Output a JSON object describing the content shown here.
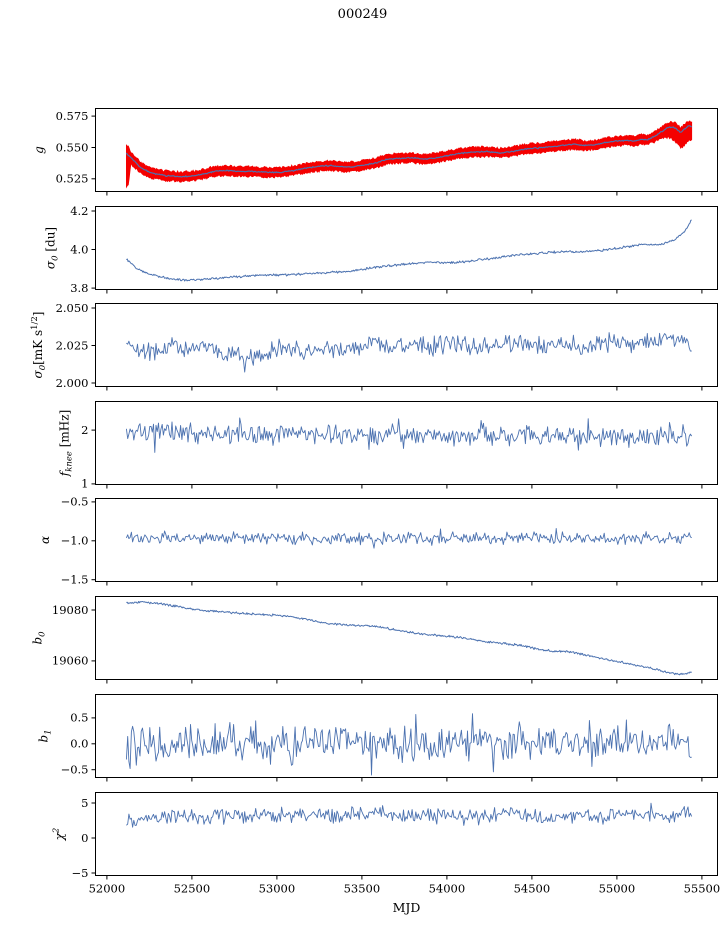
{
  "title": "000249",
  "xlabel": "MJD",
  "colors": {
    "series_blue": "#4c72b0",
    "series_red": "#f40000",
    "spine": "#000000",
    "text": "#000000",
    "background": "#ffffff"
  },
  "x_axis": {
    "label": "MJD",
    "view": [
      51930,
      55595
    ],
    "ticks": [
      52000,
      52500,
      53000,
      53500,
      54000,
      54500,
      55000,
      55500
    ],
    "tick_labels": [
      "52000",
      "52500",
      "53000",
      "53500",
      "54000",
      "54500",
      "55000",
      "55500"
    ],
    "data_start": 52115,
    "data_end": 55440
  },
  "chart_data": [
    {
      "type": "line",
      "name": "g",
      "ylabel": "g",
      "ylim": [
        0.5145,
        0.5815
      ],
      "yticks": [
        0.525,
        0.55,
        0.575
      ],
      "ytick_labels": [
        "0.525",
        "0.550",
        "0.575"
      ],
      "trend": [
        [
          52115,
          0.5455
        ],
        [
          52150,
          0.5405
        ],
        [
          52200,
          0.5338
        ],
        [
          52260,
          0.5297
        ],
        [
          52340,
          0.5276
        ],
        [
          52430,
          0.5266
        ],
        [
          52500,
          0.5271
        ],
        [
          52560,
          0.5286
        ],
        [
          52620,
          0.5306
        ],
        [
          52700,
          0.5316
        ],
        [
          52780,
          0.5309
        ],
        [
          52870,
          0.5308
        ],
        [
          52950,
          0.5301
        ],
        [
          53030,
          0.5303
        ],
        [
          53110,
          0.5319
        ],
        [
          53190,
          0.5339
        ],
        [
          53260,
          0.5352
        ],
        [
          53320,
          0.5356
        ],
        [
          53390,
          0.5346
        ],
        [
          53450,
          0.5346
        ],
        [
          53510,
          0.5359
        ],
        [
          53570,
          0.5373
        ],
        [
          53650,
          0.5407
        ],
        [
          53730,
          0.5414
        ],
        [
          53800,
          0.5417
        ],
        [
          53860,
          0.5408
        ],
        [
          53920,
          0.5414
        ],
        [
          54000,
          0.5434
        ],
        [
          54080,
          0.5454
        ],
        [
          54160,
          0.5464
        ],
        [
          54240,
          0.5467
        ],
        [
          54310,
          0.5457
        ],
        [
          54380,
          0.5466
        ],
        [
          54450,
          0.5486
        ],
        [
          54530,
          0.5496
        ],
        [
          54610,
          0.5506
        ],
        [
          54690,
          0.5518
        ],
        [
          54750,
          0.5526
        ],
        [
          54810,
          0.5516
        ],
        [
          54870,
          0.5519
        ],
        [
          54930,
          0.5539
        ],
        [
          55000,
          0.5551
        ],
        [
          55060,
          0.5558
        ],
        [
          55100,
          0.5549
        ],
        [
          55140,
          0.5564
        ],
        [
          55180,
          0.5561
        ],
        [
          55230,
          0.5593
        ],
        [
          55270,
          0.5634
        ],
        [
          55310,
          0.5663
        ],
        [
          55345,
          0.5656
        ],
        [
          55375,
          0.5618
        ],
        [
          55405,
          0.5656
        ],
        [
          55425,
          0.5673
        ],
        [
          55440,
          0.5664
        ]
      ],
      "series": [
        {
          "name": "gain-data-band",
          "type": "band",
          "color": "#f40000",
          "noise": 0.0018,
          "n": 620,
          "seed": 3,
          "band": [
            [
              52115,
              0.005,
              0.027
            ],
            [
              52128,
              0.006,
              0.022
            ],
            [
              52140,
              0.0035,
              0.004
            ],
            [
              52300,
              0.0028,
              0.0028
            ],
            [
              55200,
              0.0028,
              0.0028
            ],
            [
              55270,
              0.003,
              0.0045
            ],
            [
              55330,
              0.003,
              0.009
            ],
            [
              55390,
              0.0028,
              0.012
            ],
            [
              55440,
              0.0028,
              0.01
            ]
          ]
        },
        {
          "name": "gain-model-line",
          "type": "line",
          "color": "#4c72b0",
          "width": 1.2,
          "noise": 0.0006,
          "n": 620,
          "seed": 4
        }
      ]
    },
    {
      "type": "line",
      "name": "sigma0_du",
      "ylabel": "σ_{0} [du]",
      "ylim": [
        3.79,
        4.226
      ],
      "yticks": [
        3.8,
        4.0,
        4.2
      ],
      "ytick_labels": [
        "3.8",
        "4.0",
        "4.2"
      ],
      "trend": [
        [
          52115,
          3.951
        ],
        [
          52170,
          3.906
        ],
        [
          52240,
          3.877
        ],
        [
          52320,
          3.857
        ],
        [
          52400,
          3.846
        ],
        [
          52480,
          3.842
        ],
        [
          52560,
          3.845
        ],
        [
          52660,
          3.852
        ],
        [
          52760,
          3.858
        ],
        [
          52860,
          3.866
        ],
        [
          52960,
          3.868
        ],
        [
          53060,
          3.869
        ],
        [
          53160,
          3.874
        ],
        [
          53260,
          3.878
        ],
        [
          53360,
          3.883
        ],
        [
          53460,
          3.892
        ],
        [
          53560,
          3.905
        ],
        [
          53660,
          3.916
        ],
        [
          53760,
          3.925
        ],
        [
          53860,
          3.932
        ],
        [
          53940,
          3.934
        ],
        [
          54020,
          3.931
        ],
        [
          54100,
          3.936
        ],
        [
          54200,
          3.948
        ],
        [
          54300,
          3.958
        ],
        [
          54400,
          3.971
        ],
        [
          54500,
          3.978
        ],
        [
          54600,
          3.985
        ],
        [
          54700,
          3.989
        ],
        [
          54800,
          3.989
        ],
        [
          54900,
          3.995
        ],
        [
          55000,
          4.007
        ],
        [
          55080,
          4.017
        ],
        [
          55150,
          4.027
        ],
        [
          55210,
          4.023
        ],
        [
          55270,
          4.028
        ],
        [
          55330,
          4.047
        ],
        [
          55380,
          4.078
        ],
        [
          55410,
          4.108
        ],
        [
          55440,
          4.155
        ]
      ],
      "series": [
        {
          "name": "sigma0-du-line",
          "type": "line",
          "color": "#4c72b0",
          "width": 1.0,
          "noise": 0.007,
          "n": 700,
          "seed": 12
        }
      ]
    },
    {
      "type": "line",
      "name": "sigma0_mks",
      "ylabel": "σ_{0}[mK s^{1/2}]",
      "ylim": [
        1.9973,
        2.0533
      ],
      "yticks": [
        2.0,
        2.025,
        2.05
      ],
      "ytick_labels": [
        "2.000",
        "2.025",
        "2.050"
      ],
      "trend": [
        [
          52115,
          2.0275
        ],
        [
          52200,
          2.02
        ],
        [
          52300,
          2.0225
        ],
        [
          52400,
          2.0245
        ],
        [
          52500,
          2.022
        ],
        [
          52600,
          2.0235
        ],
        [
          52700,
          2.02
        ],
        [
          52800,
          2.0168
        ],
        [
          52900,
          2.0192
        ],
        [
          53000,
          2.0235
        ],
        [
          53100,
          2.0225
        ],
        [
          53200,
          2.021
        ],
        [
          53300,
          2.0235
        ],
        [
          53400,
          2.022
        ],
        [
          53500,
          2.0245
        ],
        [
          53600,
          2.0263
        ],
        [
          53700,
          2.024
        ],
        [
          53800,
          2.0253
        ],
        [
          53900,
          2.0245
        ],
        [
          54000,
          2.026
        ],
        [
          54100,
          2.025
        ],
        [
          54200,
          2.0237
        ],
        [
          54300,
          2.0245
        ],
        [
          54400,
          2.0268
        ],
        [
          54500,
          2.0258
        ],
        [
          54600,
          2.0246
        ],
        [
          54700,
          2.0255
        ],
        [
          54800,
          2.0242
        ],
        [
          54900,
          2.0255
        ],
        [
          55000,
          2.026
        ],
        [
          55100,
          2.0265
        ],
        [
          55200,
          2.028
        ],
        [
          55290,
          2.0303
        ],
        [
          55350,
          2.0312
        ],
        [
          55400,
          2.0252
        ],
        [
          55440,
          2.0208
        ]
      ],
      "series": [
        {
          "name": "sigma0-mks-line",
          "type": "line",
          "color": "#4c72b0",
          "width": 0.9,
          "noise": 0.0075,
          "n": 460,
          "seed": 21,
          "spike_prob": 0.06,
          "spike_mult": 1.5
        }
      ]
    },
    {
      "type": "line",
      "name": "f_knee",
      "ylabel": "f_{knee} [mHz]",
      "ylim": [
        0.98,
        2.54
      ],
      "yticks": [
        1,
        2
      ],
      "ytick_labels": [
        "1",
        "2"
      ],
      "trend": [
        [
          52115,
          1.96
        ],
        [
          52600,
          1.93
        ],
        [
          53200,
          1.92
        ],
        [
          53800,
          1.9
        ],
        [
          54400,
          1.885
        ],
        [
          55000,
          1.875
        ],
        [
          55440,
          1.89
        ]
      ],
      "series": [
        {
          "name": "fknee-line",
          "type": "line",
          "color": "#4c72b0",
          "width": 0.9,
          "noise": 0.22,
          "n": 460,
          "seed": 33,
          "spike_prob": 0.1,
          "spike_mult": 1.9
        }
      ]
    },
    {
      "type": "line",
      "name": "alpha",
      "ylabel": "α",
      "ylim": [
        -1.53,
        -0.45
      ],
      "yticks": [
        -0.5,
        -1.0,
        -1.5
      ],
      "ytick_labels": [
        "−0.5",
        "−1.0",
        "−1.5"
      ],
      "trend": [
        [
          52115,
          -0.963
        ],
        [
          53300,
          -0.968
        ],
        [
          54400,
          -0.971
        ],
        [
          55440,
          -0.964
        ]
      ],
      "series": [
        {
          "name": "alpha-line",
          "type": "line",
          "color": "#4c72b0",
          "width": 0.9,
          "noise": 0.09,
          "n": 460,
          "seed": 44,
          "spike_prob": 0.08,
          "spike_mult": 1.7
        }
      ]
    },
    {
      "type": "line",
      "name": "b0",
      "ylabel": "b_{0}",
      "ylim": [
        19052.5,
        19085.5
      ],
      "yticks": [
        19060,
        19080
      ],
      "ytick_labels": [
        "19060",
        "19080"
      ],
      "trend": [
        [
          52115,
          19082.8
        ],
        [
          52200,
          19083.2
        ],
        [
          52300,
          19082.6
        ],
        [
          52400,
          19081.6
        ],
        [
          52500,
          19080.3
        ],
        [
          52620,
          19079.6
        ],
        [
          52750,
          19078.9
        ],
        [
          52880,
          19078.3
        ],
        [
          53000,
          19078.0
        ],
        [
          53100,
          19077.2
        ],
        [
          53200,
          19076.0
        ],
        [
          53300,
          19074.7
        ],
        [
          53400,
          19074.1
        ],
        [
          53520,
          19073.9
        ],
        [
          53620,
          19073.2
        ],
        [
          53720,
          19071.9
        ],
        [
          53820,
          19070.8
        ],
        [
          53920,
          19070.2
        ],
        [
          54020,
          19069.6
        ],
        [
          54120,
          19068.8
        ],
        [
          54220,
          19067.6
        ],
        [
          54320,
          19066.9
        ],
        [
          54420,
          19066.3
        ],
        [
          54520,
          19064.8
        ],
        [
          54620,
          19063.9
        ],
        [
          54720,
          19063.6
        ],
        [
          54820,
          19062.3
        ],
        [
          54920,
          19060.8
        ],
        [
          55020,
          19059.6
        ],
        [
          55120,
          19058.2
        ],
        [
          55220,
          19056.8
        ],
        [
          55290,
          19055.6
        ],
        [
          55350,
          19054.9
        ],
        [
          55400,
          19055.0
        ],
        [
          55440,
          19055.6
        ]
      ],
      "series": [
        {
          "name": "b0-line",
          "type": "line",
          "color": "#4c72b0",
          "width": 1.0,
          "noise": 0.5,
          "n": 700,
          "seed": 55
        }
      ]
    },
    {
      "type": "line",
      "name": "b1",
      "ylabel": "b_{1}",
      "ylim": [
        -0.66,
        0.96
      ],
      "yticks": [
        0.5,
        0.0,
        -0.5
      ],
      "ytick_labels": [
        "0.5",
        "0.0",
        "−0.5"
      ],
      "trend": [
        [
          52115,
          0.02
        ],
        [
          53900,
          0.0
        ],
        [
          55440,
          0.02
        ]
      ],
      "series": [
        {
          "name": "b1-line",
          "type": "line",
          "color": "#4c72b0",
          "width": 0.9,
          "noise": 0.38,
          "n": 460,
          "seed": 66,
          "spike_prob": 0.12,
          "spike_mult": 1.8
        }
      ]
    },
    {
      "type": "line",
      "name": "chi2",
      "ylabel": "χ^{2}",
      "ylim": [
        -5.43,
        6.57
      ],
      "yticks": [
        5,
        0,
        -5
      ],
      "ytick_labels": [
        "5",
        "0",
        "−5"
      ],
      "trend": [
        [
          52115,
          2.5
        ],
        [
          52250,
          2.9
        ],
        [
          52400,
          3.2
        ],
        [
          52550,
          2.8
        ],
        [
          52700,
          3.3
        ],
        [
          52850,
          3.0
        ],
        [
          53000,
          3.2
        ],
        [
          53150,
          3.4
        ],
        [
          53300,
          3.1
        ],
        [
          53450,
          3.3
        ],
        [
          53600,
          3.5
        ],
        [
          53750,
          3.2
        ],
        [
          53900,
          3.4
        ],
        [
          54050,
          2.8
        ],
        [
          54200,
          3.3
        ],
        [
          54350,
          3.5
        ],
        [
          54500,
          3.0
        ],
        [
          54650,
          2.7
        ],
        [
          54800,
          3.3
        ],
        [
          54950,
          3.1
        ],
        [
          55100,
          3.4
        ],
        [
          55250,
          3.2
        ],
        [
          55400,
          3.6
        ],
        [
          55440,
          3.4
        ]
      ],
      "series": [
        {
          "name": "chi2-line",
          "type": "line",
          "color": "#4c72b0",
          "width": 0.9,
          "noise": 1.3,
          "n": 460,
          "seed": 77,
          "spike_prob": 0.05,
          "spike_mult": 1.4
        }
      ]
    }
  ]
}
